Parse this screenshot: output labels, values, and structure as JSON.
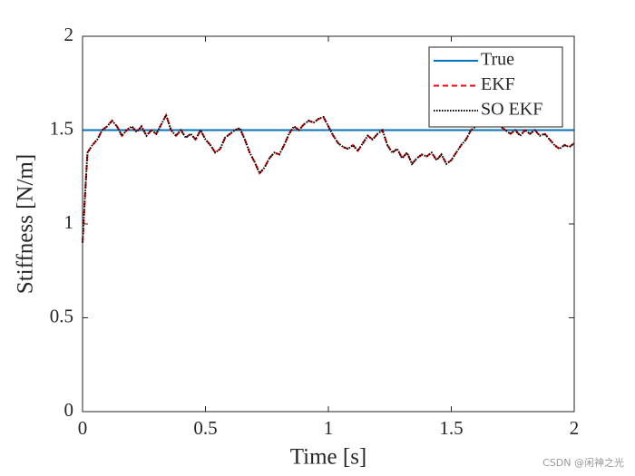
{
  "chart_data": {
    "type": "line",
    "xlabel": "Time [s]",
    "ylabel": "Stiffness [N/m]",
    "xlim": [
      0,
      2
    ],
    "ylim": [
      0,
      2
    ],
    "xticks": [
      0,
      0.5,
      1,
      1.5,
      2
    ],
    "yticks": [
      0,
      0.5,
      1,
      1.5,
      2
    ],
    "grid": false,
    "legend": "northeast",
    "watermark": "CSDN @闲神之光",
    "series": [
      {
        "name": "True",
        "color": "#0072bd",
        "dash": "solid",
        "x": [
          0,
          2
        ],
        "values": [
          1.5,
          1.5
        ]
      },
      {
        "name": "EKF",
        "color": "#ff0000",
        "dash": "dashed",
        "x": [
          0,
          0.01,
          0.02,
          0.04,
          0.06,
          0.08,
          0.1,
          0.12,
          0.14,
          0.16,
          0.18,
          0.2,
          0.22,
          0.24,
          0.26,
          0.28,
          0.3,
          0.32,
          0.34,
          0.36,
          0.38,
          0.4,
          0.42,
          0.44,
          0.46,
          0.48,
          0.5,
          0.52,
          0.54,
          0.56,
          0.58,
          0.6,
          0.62,
          0.64,
          0.66,
          0.68,
          0.7,
          0.72,
          0.74,
          0.76,
          0.78,
          0.8,
          0.82,
          0.84,
          0.86,
          0.88,
          0.9,
          0.92,
          0.94,
          0.96,
          0.98,
          1,
          1.02,
          1.04,
          1.06,
          1.08,
          1.1,
          1.12,
          1.14,
          1.16,
          1.18,
          1.2,
          1.22,
          1.24,
          1.26,
          1.28,
          1.3,
          1.32,
          1.34,
          1.36,
          1.38,
          1.4,
          1.42,
          1.44,
          1.46,
          1.48,
          1.5,
          1.52,
          1.54,
          1.56,
          1.58,
          1.6,
          1.62,
          1.64,
          1.66,
          1.68,
          1.7,
          1.72,
          1.74,
          1.76,
          1.78,
          1.8,
          1.82,
          1.84,
          1.86,
          1.88,
          1.9,
          1.92,
          1.94,
          1.96,
          1.98,
          2
        ],
        "values": [
          0.9,
          1.15,
          1.38,
          1.42,
          1.45,
          1.5,
          1.52,
          1.55,
          1.52,
          1.47,
          1.5,
          1.52,
          1.49,
          1.52,
          1.47,
          1.5,
          1.48,
          1.53,
          1.58,
          1.5,
          1.47,
          1.5,
          1.46,
          1.48,
          1.45,
          1.5,
          1.45,
          1.42,
          1.38,
          1.4,
          1.46,
          1.48,
          1.5,
          1.51,
          1.45,
          1.38,
          1.33,
          1.27,
          1.3,
          1.35,
          1.38,
          1.37,
          1.42,
          1.48,
          1.52,
          1.5,
          1.53,
          1.55,
          1.54,
          1.56,
          1.57,
          1.52,
          1.47,
          1.43,
          1.41,
          1.4,
          1.42,
          1.39,
          1.43,
          1.47,
          1.45,
          1.48,
          1.5,
          1.42,
          1.38,
          1.4,
          1.35,
          1.38,
          1.32,
          1.35,
          1.37,
          1.36,
          1.38,
          1.34,
          1.37,
          1.32,
          1.34,
          1.38,
          1.42,
          1.45,
          1.5,
          1.52,
          1.55,
          1.53,
          1.52,
          1.55,
          1.52,
          1.5,
          1.48,
          1.5,
          1.47,
          1.5,
          1.48,
          1.5,
          1.47,
          1.48,
          1.45,
          1.42,
          1.4,
          1.42,
          1.41,
          1.43
        ]
      },
      {
        "name": "SO EKF",
        "color": "#000000",
        "dash": "dotted",
        "x": [
          0,
          0.01,
          0.02,
          0.04,
          0.06,
          0.08,
          0.1,
          0.12,
          0.14,
          0.16,
          0.18,
          0.2,
          0.22,
          0.24,
          0.26,
          0.28,
          0.3,
          0.32,
          0.34,
          0.36,
          0.38,
          0.4,
          0.42,
          0.44,
          0.46,
          0.48,
          0.5,
          0.52,
          0.54,
          0.56,
          0.58,
          0.6,
          0.62,
          0.64,
          0.66,
          0.68,
          0.7,
          0.72,
          0.74,
          0.76,
          0.78,
          0.8,
          0.82,
          0.84,
          0.86,
          0.88,
          0.9,
          0.92,
          0.94,
          0.96,
          0.98,
          1,
          1.02,
          1.04,
          1.06,
          1.08,
          1.1,
          1.12,
          1.14,
          1.16,
          1.18,
          1.2,
          1.22,
          1.24,
          1.26,
          1.28,
          1.3,
          1.32,
          1.34,
          1.36,
          1.38,
          1.4,
          1.42,
          1.44,
          1.46,
          1.48,
          1.5,
          1.52,
          1.54,
          1.56,
          1.58,
          1.6,
          1.62,
          1.64,
          1.66,
          1.68,
          1.7,
          1.72,
          1.74,
          1.76,
          1.78,
          1.8,
          1.82,
          1.84,
          1.86,
          1.88,
          1.9,
          1.92,
          1.94,
          1.96,
          1.98,
          2
        ],
        "values": [
          0.9,
          1.15,
          1.38,
          1.42,
          1.45,
          1.5,
          1.52,
          1.55,
          1.52,
          1.47,
          1.5,
          1.52,
          1.49,
          1.52,
          1.47,
          1.5,
          1.48,
          1.53,
          1.58,
          1.5,
          1.47,
          1.5,
          1.46,
          1.48,
          1.45,
          1.5,
          1.45,
          1.42,
          1.38,
          1.4,
          1.46,
          1.48,
          1.5,
          1.51,
          1.45,
          1.38,
          1.33,
          1.27,
          1.3,
          1.35,
          1.38,
          1.37,
          1.42,
          1.48,
          1.52,
          1.5,
          1.53,
          1.55,
          1.54,
          1.56,
          1.57,
          1.52,
          1.47,
          1.43,
          1.41,
          1.4,
          1.42,
          1.39,
          1.43,
          1.47,
          1.45,
          1.48,
          1.5,
          1.42,
          1.38,
          1.4,
          1.35,
          1.38,
          1.32,
          1.35,
          1.37,
          1.36,
          1.38,
          1.34,
          1.37,
          1.32,
          1.34,
          1.38,
          1.42,
          1.45,
          1.5,
          1.52,
          1.55,
          1.53,
          1.52,
          1.55,
          1.52,
          1.5,
          1.48,
          1.5,
          1.47,
          1.5,
          1.48,
          1.5,
          1.47,
          1.48,
          1.45,
          1.42,
          1.4,
          1.42,
          1.41,
          1.43
        ]
      }
    ]
  }
}
